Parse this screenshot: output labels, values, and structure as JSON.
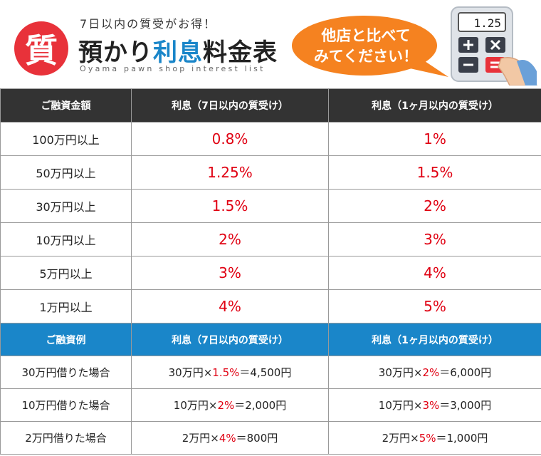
{
  "header": {
    "logo_char": "質",
    "tagline": "7日以内の質受がお得！",
    "title_pre": "預かり",
    "title_highlight": "利息",
    "title_post": "料金表",
    "subtitle": "Oyama pawn shop interest list",
    "bubble_line1": "他店と比べて",
    "bubble_line2": "みてください！",
    "calculator_display": "1.25",
    "colors": {
      "accent_red": "#e8323a",
      "accent_blue": "#1a86c9",
      "bubble_orange": "#f58220"
    }
  },
  "rates": {
    "headers": [
      "ご融資金額",
      "利息（7日以内の質受け）",
      "利息（1ヶ月以内の質受け）"
    ],
    "rows": [
      {
        "amount": "100万円以上",
        "rate7": "0.8%",
        "rate30": "1%"
      },
      {
        "amount": "50万円以上",
        "rate7": "1.25%",
        "rate30": "1.5%"
      },
      {
        "amount": "30万円以上",
        "rate7": "1.5%",
        "rate30": "2%"
      },
      {
        "amount": "10万円以上",
        "rate7": "2%",
        "rate30": "3%"
      },
      {
        "amount": "5万円以上",
        "rate7": "3%",
        "rate30": "4%"
      },
      {
        "amount": "1万円以上",
        "rate7": "4%",
        "rate30": "5%"
      }
    ]
  },
  "examples": {
    "headers": [
      "ご融資例",
      "利息（7日以内の質受け）",
      "利息（1ヶ月以内の質受け）"
    ],
    "rows": [
      {
        "case": "30万円借りた場合",
        "c7": {
          "pre": "30万円×",
          "rate": "1.5%",
          "post": "＝4,500円"
        },
        "c30": {
          "pre": "30万円×",
          "rate": "2%",
          "post": "＝6,000円"
        }
      },
      {
        "case": "10万円借りた場合",
        "c7": {
          "pre": "10万円×",
          "rate": "2%",
          "post": "＝2,000円"
        },
        "c30": {
          "pre": "10万円×",
          "rate": "3%",
          "post": "＝3,000円"
        }
      },
      {
        "case": "2万円借りた場合",
        "c7": {
          "pre": "2万円×",
          "rate": "4%",
          "post": "＝800円"
        },
        "c30": {
          "pre": "2万円×",
          "rate": "5%",
          "post": "＝1,000円"
        }
      }
    ]
  }
}
